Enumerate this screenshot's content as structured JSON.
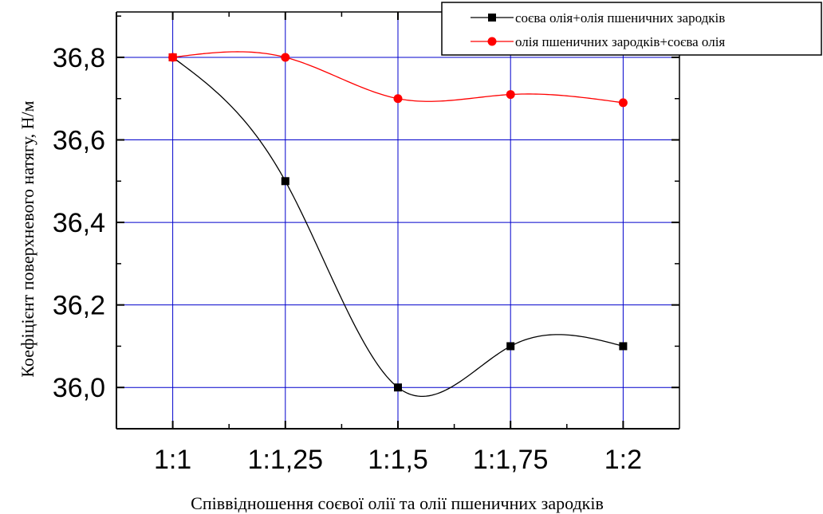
{
  "chart_data": {
    "type": "line",
    "categories": [
      "1:1",
      "1:1,25",
      "1:1,5",
      "1:1,75",
      "1:2"
    ],
    "x": [
      1,
      1.25,
      1.5,
      1.75,
      2
    ],
    "series": [
      {
        "name": "соєва олія+олія пшеничних зародків",
        "values": [
          36.8,
          36.5,
          36.0,
          36.1,
          36.1
        ],
        "color": "#000000",
        "marker": "square"
      },
      {
        "name": "олія пшеничних зародків+соєва олія",
        "values": [
          36.8,
          36.8,
          36.7,
          36.71,
          36.69
        ],
        "color": "#ff0000",
        "marker": "circle"
      }
    ],
    "xlabel": "Співвідношення соєвої олії та олії пшеничних зародків",
    "ylabel": "Коефіцієнт поверхневого натягу, Н/м",
    "ylim": [
      35.9,
      36.91
    ],
    "xlim": [
      0.875,
      2.125
    ],
    "yticks": [
      36.0,
      36.2,
      36.4,
      36.6,
      36.8
    ],
    "ytick_labels": [
      "36,0",
      "36,2",
      "36,4",
      "36,6",
      "36,8"
    ],
    "grid": true,
    "grid_color": "#0000cc",
    "legend_position": "top-right"
  }
}
